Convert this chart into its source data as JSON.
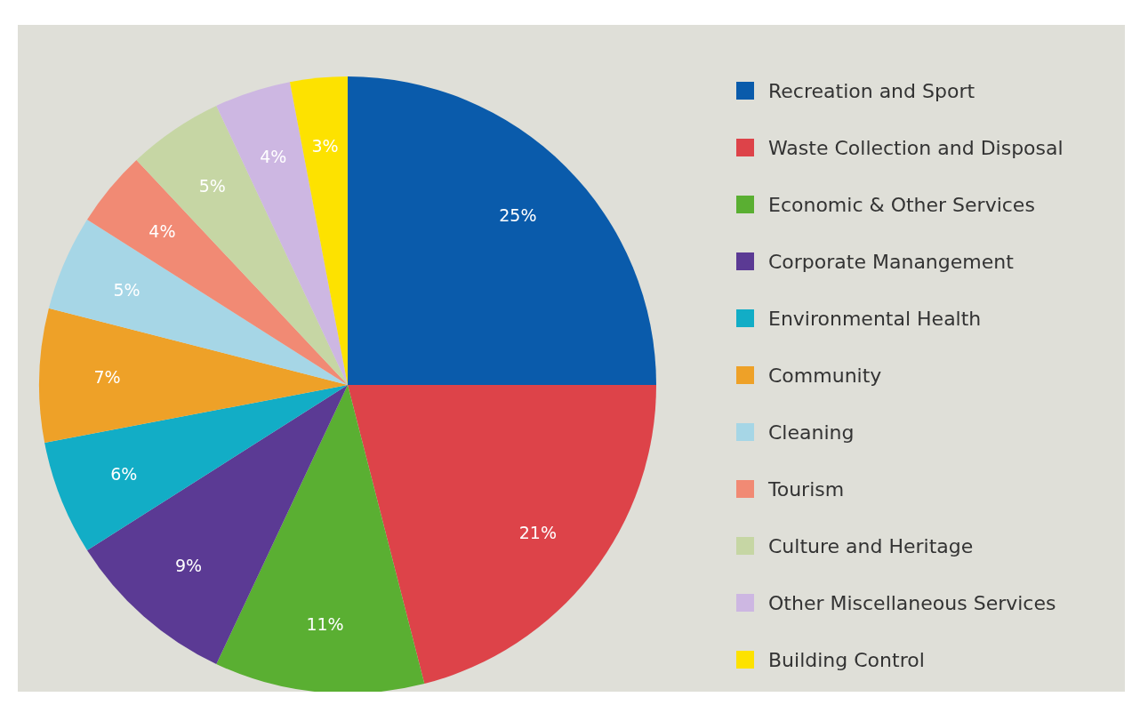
{
  "chart_data": {
    "type": "pie",
    "categories": [
      "Recreation and Sport",
      "Waste Collection and Disposal",
      "Economic & Other Services",
      "Corporate Manangement",
      "Environmental Health",
      "Community",
      "Cleaning",
      "Tourism",
      "Culture and Heritage",
      "Other Miscellaneous Services",
      "Building Control"
    ],
    "values": [
      25,
      21,
      11,
      9,
      6,
      7,
      5,
      4,
      5,
      4,
      3
    ],
    "colors": [
      "#0a5bab",
      "#dd4349",
      "#5aaf32",
      "#5b3a94",
      "#12adc6",
      "#eea128",
      "#a6d6e6",
      "#f18a74",
      "#c6d6a4",
      "#cdb7e2",
      "#fde200"
    ],
    "value_labels": [
      "25%",
      "21%",
      "11%",
      "9%",
      "6%",
      "7%",
      "5%",
      "4%",
      "5%",
      "4%",
      "3%"
    ],
    "legend": "right"
  }
}
